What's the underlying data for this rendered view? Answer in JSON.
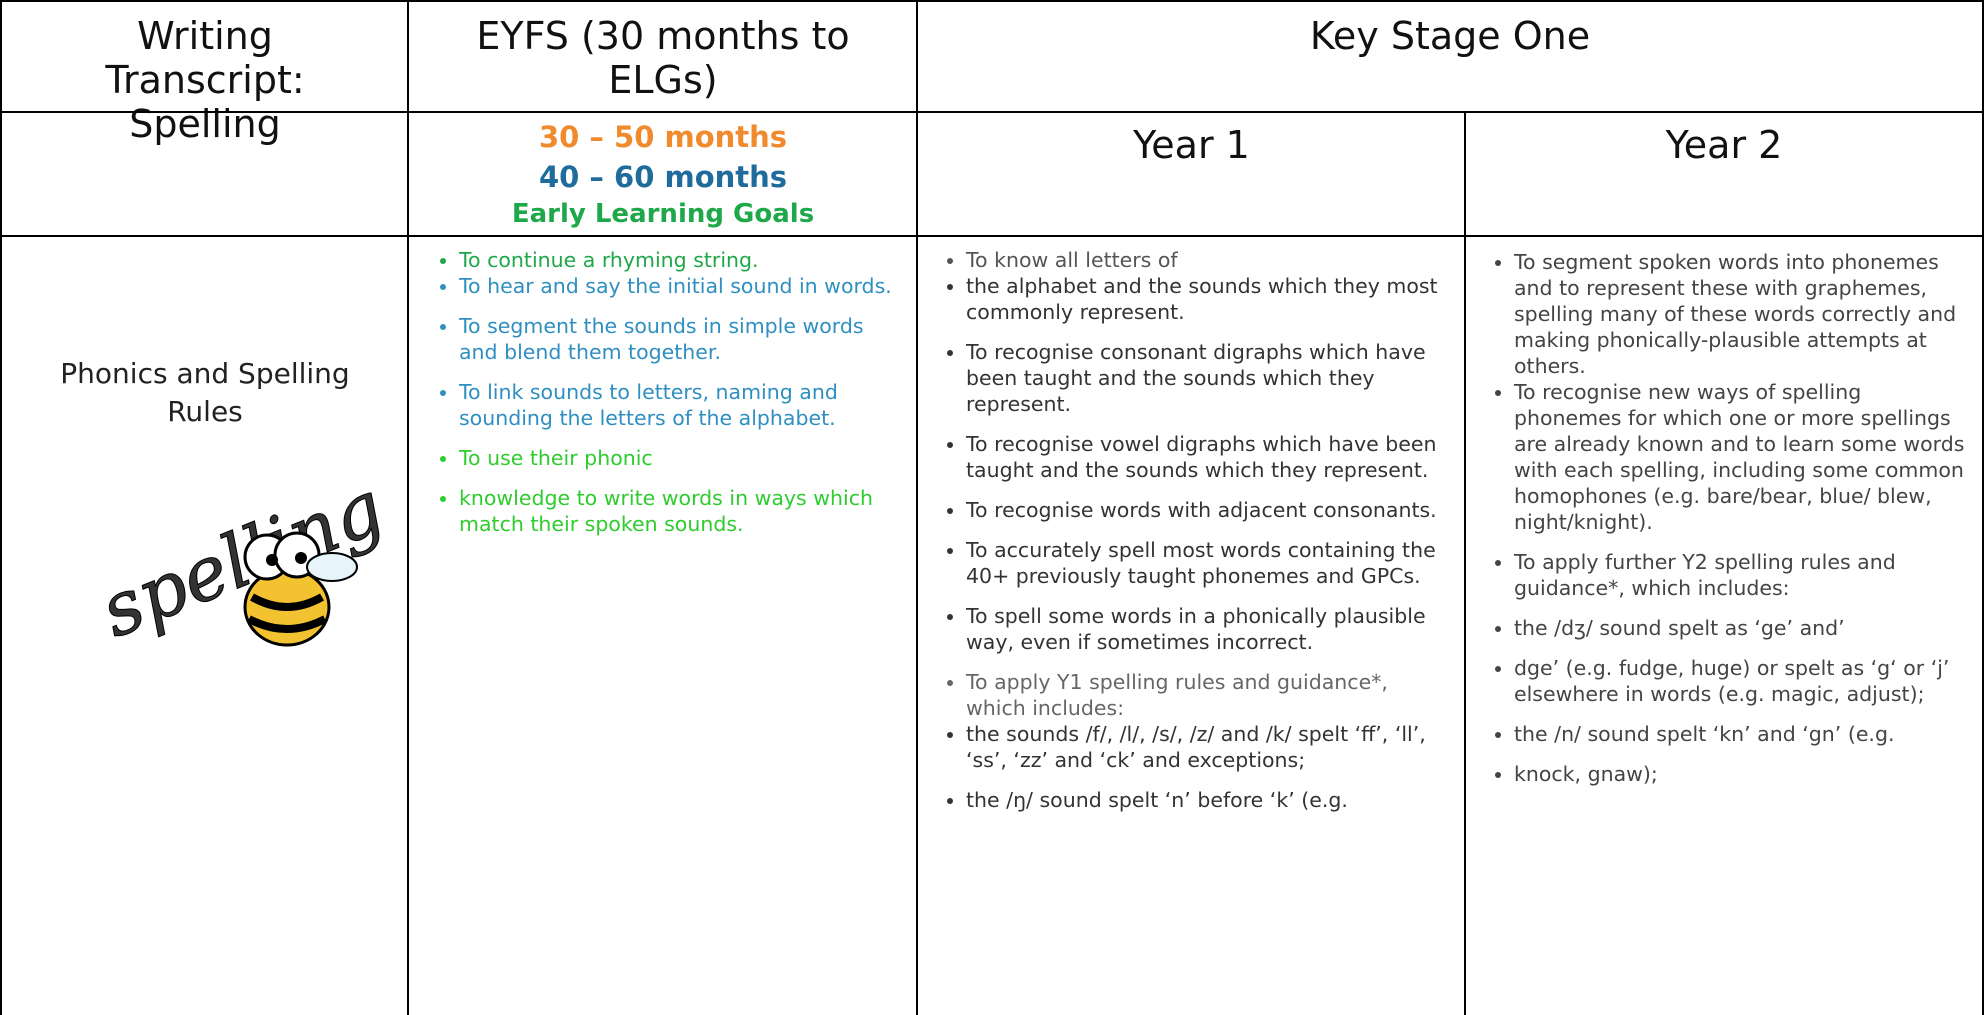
{
  "header": {
    "title": "Writing Transcript: Spelling",
    "eyfs": "EYFS (30 months to ELGs)",
    "key_stage": "Key Stage One"
  },
  "subheader": {
    "band_1": "30 – 50 months",
    "band_2": "40 – 60 months",
    "band_3": "Early Learning Goals",
    "year_1": "Year 1",
    "year_2": "Year 2"
  },
  "row": {
    "label": "Phonics and Spelling Rules",
    "image_text": "spelling",
    "eyfs": [
      "To continue a rhyming string.",
      "To hear and say the initial sound in words.",
      "To segment the sounds in simple words and blend them together.",
      "To link sounds to letters, naming and sounding the letters of the alphabet.",
      "To use their phonic",
      "knowledge to write words in ways which match their spoken sounds."
    ],
    "year_1": [
      "To know all letters of",
      "the alphabet and the sounds which they most commonly represent.",
      "To recognise consonant digraphs which have been taught and the sounds which they represent.",
      "To recognise vowel digraphs which have been taught and the sounds which they represent.",
      "To recognise words with adjacent consonants.",
      "To accurately spell most words containing the 40+ previously taught phonemes and GPCs.",
      "To spell some words in a phonically plausible way, even if sometimes incorrect.",
      "To apply Y1 spelling rules and guidance*, which includes:",
      "the sounds /f/, /l/, /s/, /z/ and /k/ spelt ‘ff’, ‘ll’, ‘ss’, ‘zz’ and ‘ck’ and exceptions;",
      "the /ŋ/ sound spelt ‘n’ before ‘k’ (e.g."
    ],
    "year_2": [
      "To segment spoken words into phonemes and to represent these with graphemes, spelling many of these words correctly and making phonically-plausible attempts at others.",
      "To recognise new ways of spelling phonemes for which one or more spellings are already known and to learn some words with each spelling, including some common homophones (e.g. bare/bear, blue/ blew, night/knight).",
      "To apply further Y2 spelling rules and guidance*, which includes:",
      "the /dʒ/ sound spelt as ‘ge’ and’",
      "dge’ (e.g. fudge, huge) or spelt as ‘g‘ or ‘j’ elsewhere in words (e.g. magic, adjust);",
      "the /n/ sound spelt ‘kn’ and ‘gn’ (e.g.",
      "knock, gnaw);"
    ]
  }
}
